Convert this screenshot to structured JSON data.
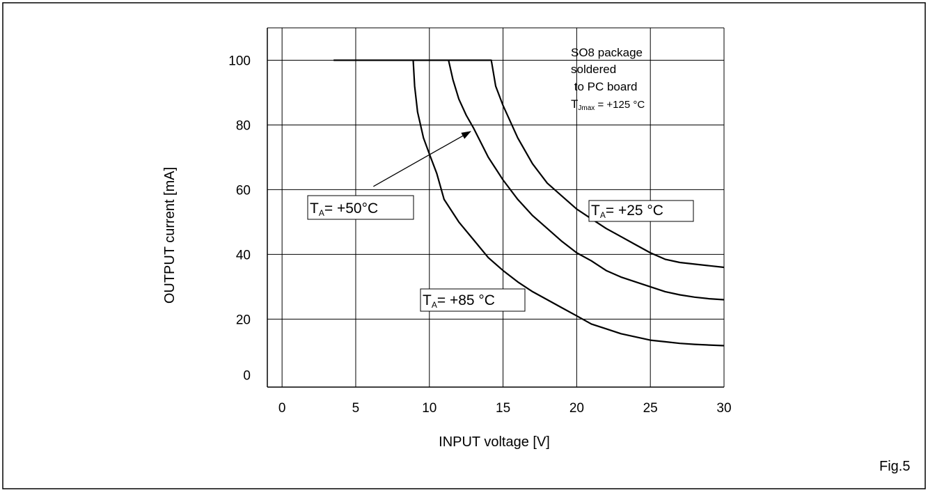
{
  "chart_data": {
    "type": "line",
    "title": "",
    "xlabel": "INPUT voltage [V]",
    "ylabel": "OUTPUT current [mA]",
    "xlim": [
      -1,
      30
    ],
    "ylim": [
      -1,
      110
    ],
    "x_ticks": [
      0,
      5,
      10,
      15,
      20,
      25,
      30
    ],
    "y_ticks": [
      0,
      20,
      40,
      60,
      80,
      100
    ],
    "grid": true,
    "figure_label": "Fig.5",
    "note": {
      "line1": "SO8 package",
      "line2": "soldered",
      "line3": " to PC board",
      "tj_symbol": "T",
      "tj_sub": "Jmax",
      "tj_value": " = +125 °C"
    },
    "series": [
      {
        "name": "TA=+25 °C",
        "label": {
          "symbol": "T",
          "sub": "A",
          "text": "= +25 °C"
        },
        "points": [
          [
            3.5,
            100
          ],
          [
            14.2,
            100
          ],
          [
            14.5,
            92
          ],
          [
            15,
            86
          ],
          [
            16,
            76
          ],
          [
            17,
            68
          ],
          [
            18,
            62
          ],
          [
            19,
            58
          ],
          [
            20,
            54
          ],
          [
            21,
            51
          ],
          [
            22,
            48
          ],
          [
            23,
            45.5
          ],
          [
            24,
            43
          ],
          [
            25,
            40.5
          ],
          [
            26,
            38.5
          ],
          [
            27,
            37.5
          ],
          [
            28,
            37
          ],
          [
            29,
            36.5
          ],
          [
            30,
            36
          ]
        ]
      },
      {
        "name": "TA=+50°C",
        "label": {
          "symbol": "T",
          "sub": "A",
          "text": "= +50°C"
        },
        "points": [
          [
            11.3,
            100
          ],
          [
            11.6,
            94
          ],
          [
            12,
            88
          ],
          [
            12.5,
            83
          ],
          [
            13,
            79
          ],
          [
            14,
            70
          ],
          [
            15,
            63
          ],
          [
            16,
            57
          ],
          [
            17,
            52
          ],
          [
            18,
            48
          ],
          [
            19,
            44
          ],
          [
            20,
            40.5
          ],
          [
            21,
            38
          ],
          [
            22,
            35
          ],
          [
            23,
            33
          ],
          [
            24,
            31.5
          ],
          [
            25,
            30
          ],
          [
            26,
            28.5
          ],
          [
            27,
            27.5
          ],
          [
            28,
            26.8
          ],
          [
            29,
            26.3
          ],
          [
            30,
            26
          ]
        ],
        "arrow": {
          "from": [
            6.2,
            61
          ],
          "to": [
            12.8,
            78
          ]
        }
      },
      {
        "name": "TA=+85 °C",
        "label": {
          "symbol": "T",
          "sub": "A",
          "text": "= +85 °C"
        },
        "points": [
          [
            8.9,
            100
          ],
          [
            9.0,
            92
          ],
          [
            9.2,
            84
          ],
          [
            9.6,
            76
          ],
          [
            10,
            71
          ],
          [
            10.5,
            65
          ],
          [
            11,
            57
          ],
          [
            12,
            50
          ],
          [
            13,
            44.5
          ],
          [
            14,
            39
          ],
          [
            15,
            35
          ],
          [
            16,
            31.5
          ],
          [
            17,
            28.5
          ],
          [
            18,
            26
          ],
          [
            19,
            23.5
          ],
          [
            20,
            21
          ],
          [
            21,
            18.5
          ],
          [
            22,
            17
          ],
          [
            23,
            15.5
          ],
          [
            24,
            14.5
          ],
          [
            25,
            13.5
          ],
          [
            26,
            13
          ],
          [
            27,
            12.5
          ],
          [
            28,
            12.2
          ],
          [
            29,
            12
          ],
          [
            30,
            11.8
          ]
        ]
      }
    ]
  }
}
